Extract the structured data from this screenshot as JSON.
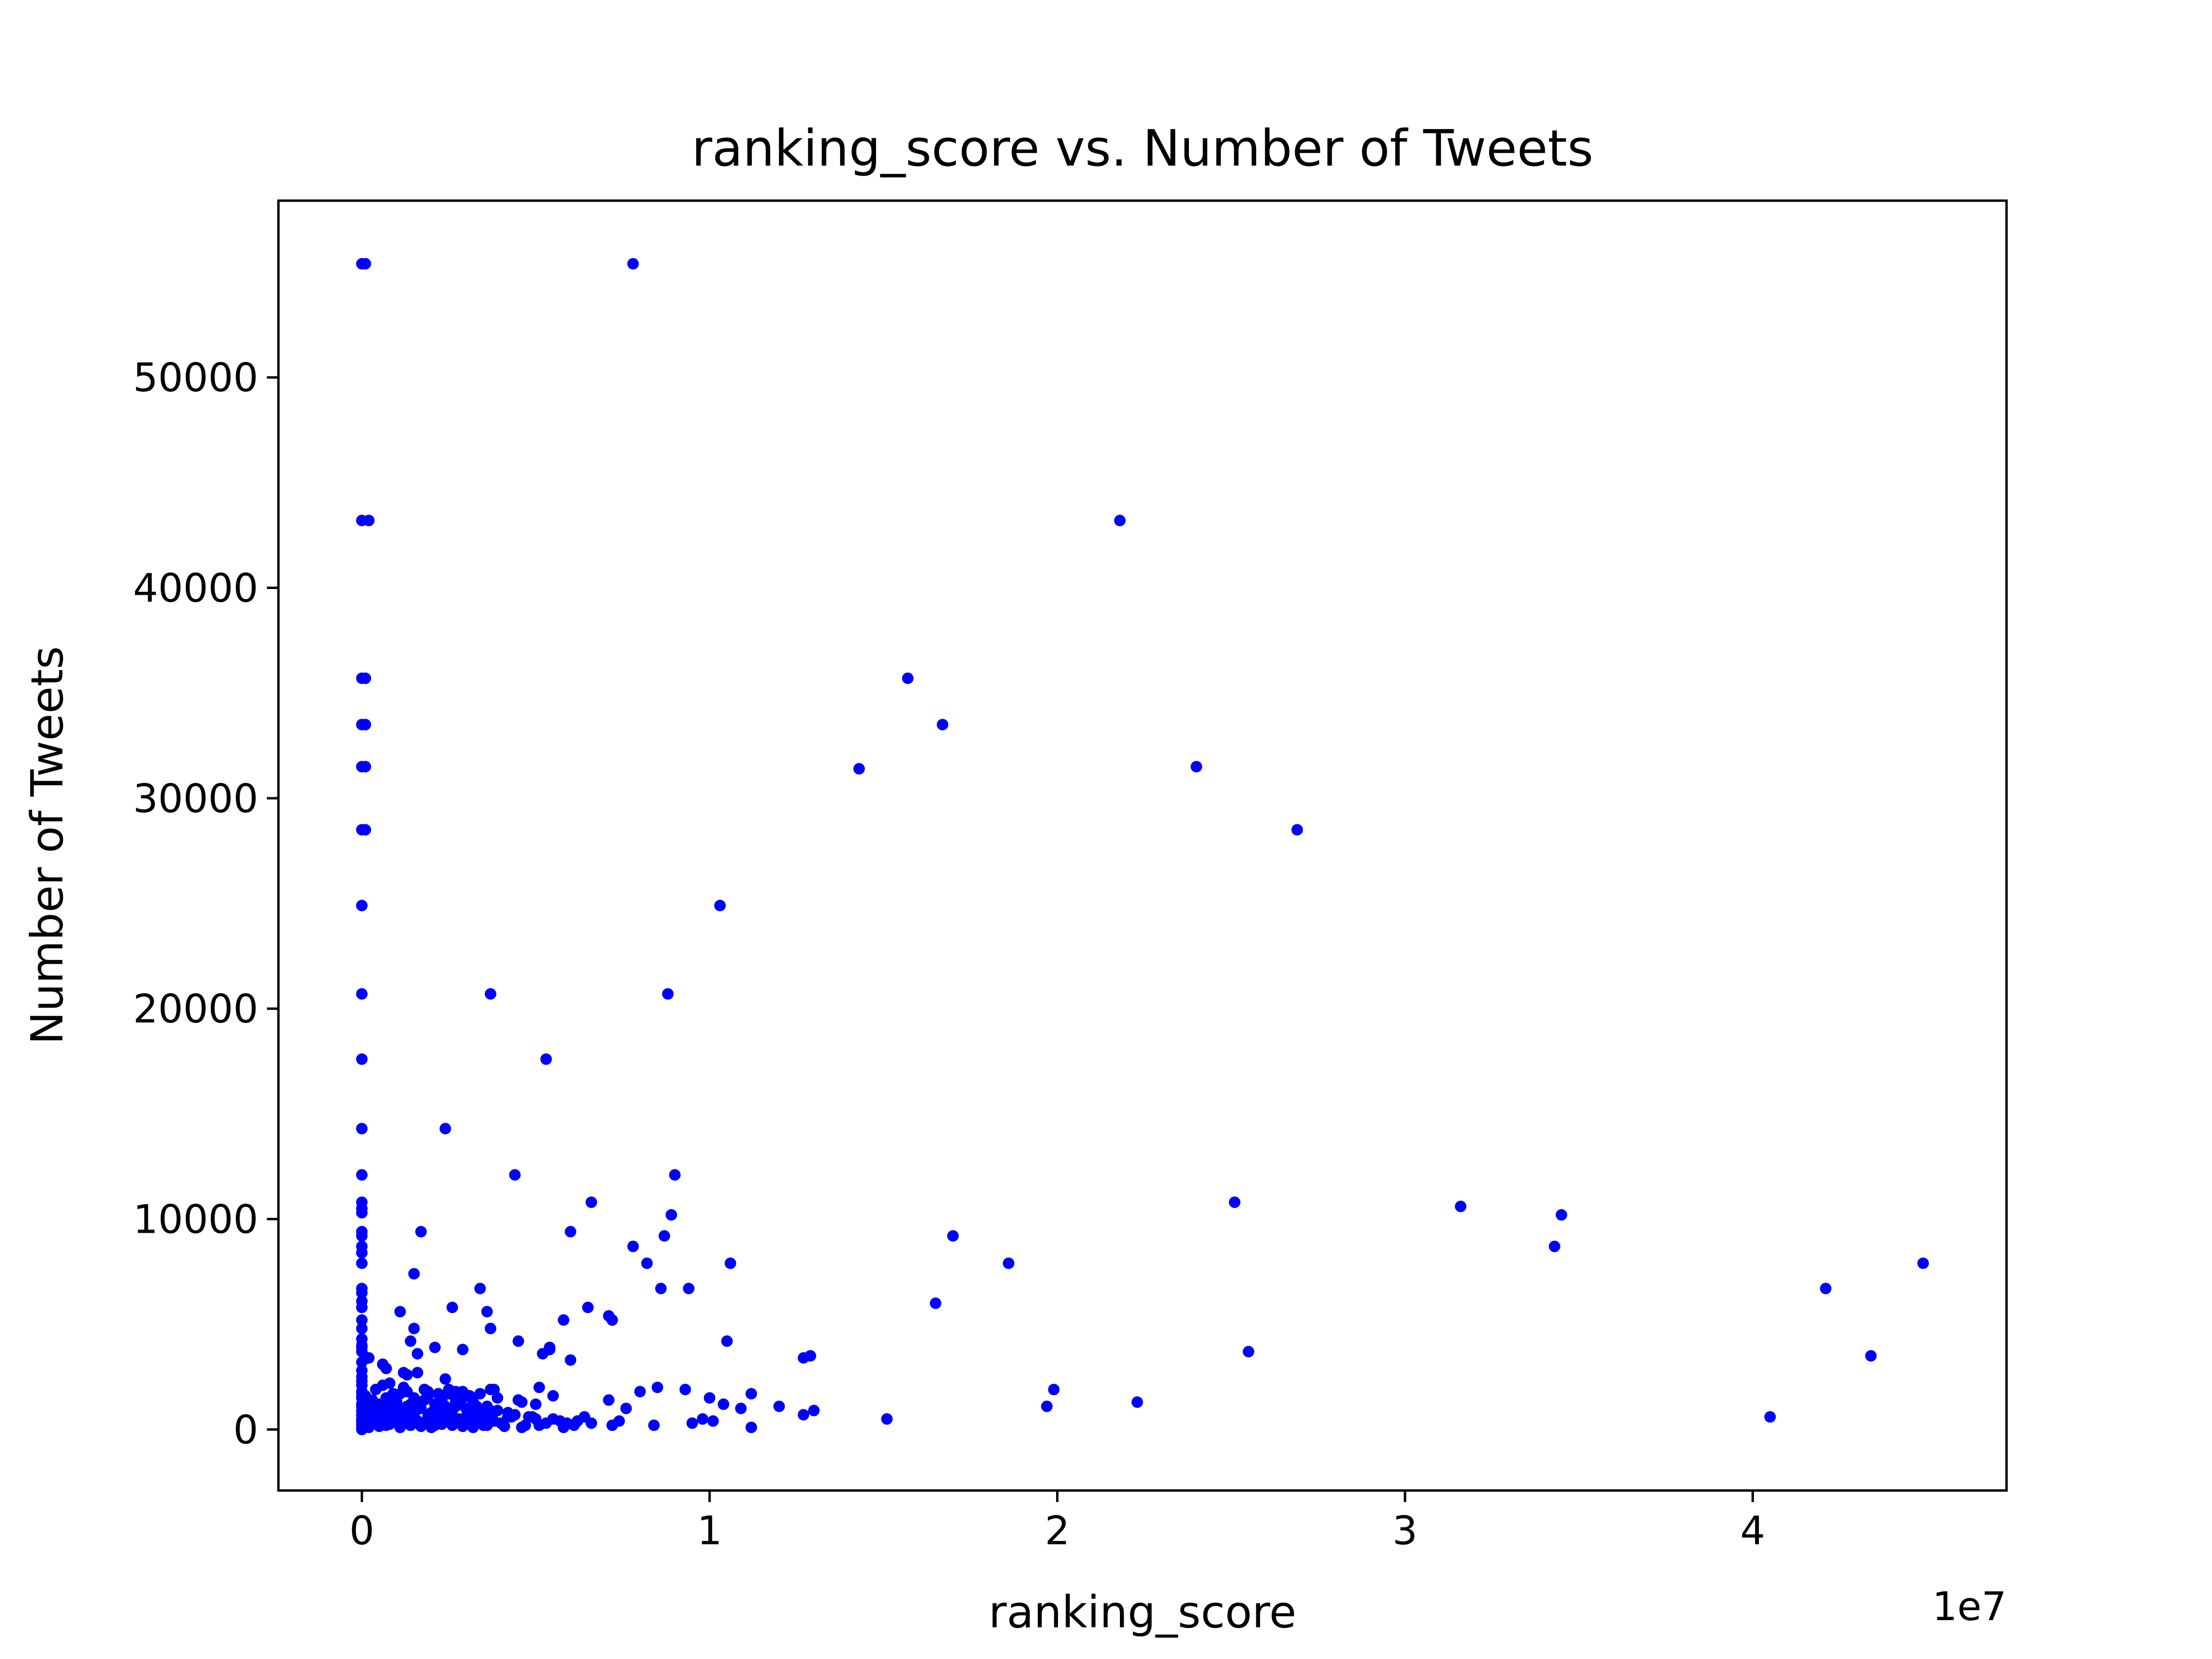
{
  "chart_data": {
    "type": "scatter",
    "title": "ranking_score vs. Number of Tweets",
    "xlabel": "ranking_score",
    "ylabel": "Number of Tweets",
    "x_offset_label": "1e7",
    "x_scale_note": "x values in units of 1e7",
    "xlim": [
      -0.24,
      4.73
    ],
    "ylim": [
      -2900,
      58400
    ],
    "x_ticks": [
      0,
      1,
      2,
      3,
      4
    ],
    "x_tick_labels": [
      "0",
      "1",
      "2",
      "3",
      "4"
    ],
    "y_ticks": [
      0,
      10000,
      20000,
      30000,
      40000,
      50000
    ],
    "y_tick_labels": [
      "0",
      "10000",
      "20000",
      "30000",
      "40000",
      "50000"
    ],
    "grid": false,
    "legend": "none",
    "marker_color": "#0000ff",
    "series": [
      {
        "x": [
          0.0,
          0.01,
          0.78,
          0.0,
          0.02,
          2.18,
          0.0,
          0.01,
          1.57,
          0.0,
          0.01,
          1.67,
          0.0,
          0.01,
          1.43,
          2.4,
          0.0,
          0.01,
          2.69,
          0.0,
          1.03,
          0.0,
          0.37,
          0.88,
          0.0,
          0.53,
          0.0,
          0.24,
          0.0,
          0.44,
          0.9,
          0.0,
          0.0,
          0.66,
          2.51,
          0.0,
          3.16,
          0.0,
          0.89,
          0.0,
          0.17,
          0.6,
          0.87,
          0.0,
          1.7,
          0.0,
          3.45,
          3.43,
          0.0,
          0.78,
          0.82,
          0.15,
          1.06,
          1.86,
          4.49,
          0.0,
          0.86,
          0.34,
          0.94,
          4.21,
          0.0,
          0.11,
          0.26,
          0.36,
          0.71,
          0.72,
          0.65,
          1.65,
          0.0,
          0.15,
          0.37,
          0.58,
          1.05,
          0.0,
          0.14,
          0.45,
          0.29,
          0.54,
          0.52,
          0.0,
          0.02,
          0.16,
          0.21,
          0.06,
          1.29,
          1.27,
          0.07,
          0.12,
          0.54,
          0.6,
          2.55,
          4.34,
          0.0,
          0.08,
          0.13,
          0.16,
          0.24,
          0.0,
          0.18,
          0.29,
          0.37,
          0.51,
          0.0,
          0.19,
          0.38,
          0.8,
          0.85,
          0.93,
          1.12,
          1.99,
          0.0,
          0.27,
          0.46,
          0.55,
          0.71,
          1.0,
          1.2,
          1.97,
          2.23,
          0.1,
          0.36,
          0.5,
          0.76,
          1.04,
          1.09,
          1.3,
          1.27,
          0.0,
          0.42,
          0.64,
          0.74,
          0.98,
          1.51,
          4.05,
          0.0,
          0.03,
          0.31,
          0.59,
          0.84,
          0.95,
          1.01,
          0.0,
          1.12,
          0.0,
          0.01,
          0.02,
          0.03,
          0.04,
          0.05,
          0.06,
          0.07,
          0.08,
          0.09,
          0.1,
          0.11,
          0.12,
          0.13,
          0.14,
          0.15,
          0.16,
          0.17,
          0.18,
          0.19,
          0.2,
          0.21,
          0.22,
          0.23,
          0.24,
          0.25,
          0.26,
          0.27,
          0.28,
          0.29,
          0.3,
          0.31,
          0.32,
          0.33,
          0.34,
          0.35,
          0.36,
          0.38,
          0.4,
          0.43,
          0.47,
          0.5,
          0.53,
          0.57,
          0.61,
          0.66,
          0.72,
          0.02,
          0.04,
          0.06,
          0.08,
          0.1,
          0.12,
          0.14,
          0.16,
          0.18,
          0.2,
          0.22,
          0.24,
          0.26,
          0.28,
          0.3,
          0.32,
          0.35,
          0.39,
          0.44,
          0.49,
          0.55,
          0.62,
          0.01,
          0.03,
          0.05,
          0.07,
          0.09,
          0.11,
          0.13,
          0.15,
          0.17,
          0.19,
          0.21,
          0.23,
          0.25,
          0.27,
          0.29,
          0.33,
          0.37,
          0.42,
          0.48,
          0.02,
          0.05,
          0.08,
          0.11,
          0.14,
          0.17,
          0.2,
          0.23,
          0.26,
          0.29,
          0.32,
          0.36,
          0.41,
          0.46,
          0.51,
          0.58,
          0.04,
          0.09,
          0.13,
          0.18,
          0.22,
          0.27,
          0.31,
          0.06,
          0.12,
          0.19,
          0.25,
          0.3,
          0.34,
          0.39,
          0.45,
          0.0,
          0.0,
          0.0,
          0.0,
          0.0,
          0.0,
          0.0,
          0.0,
          0.0,
          0.0,
          0.0,
          0.0,
          0.0,
          0.0,
          0.0,
          0.0,
          0.0,
          0.0
        ],
        "y": [
          55400,
          55400,
          55400,
          43200,
          43200,
          43200,
          35700,
          35700,
          35700,
          33500,
          33500,
          33500,
          31500,
          31500,
          31400,
          31500,
          28500,
          28500,
          28500,
          24900,
          24900,
          20700,
          20700,
          20700,
          17600,
          17600,
          14300,
          14300,
          12100,
          12100,
          12100,
          10800,
          10500,
          10800,
          10800,
          10300,
          10600,
          9400,
          10200,
          9200,
          9400,
          9400,
          9200,
          8700,
          9200,
          8400,
          10200,
          8700,
          7900,
          8700,
          7900,
          7400,
          7900,
          7900,
          7900,
          6700,
          6700,
          6700,
          6700,
          6700,
          6100,
          5600,
          5800,
          5600,
          5400,
          5200,
          5800,
          6000,
          5200,
          4800,
          4800,
          5200,
          4200,
          4300,
          4200,
          4200,
          3800,
          3800,
          3600,
          3900,
          3400,
          3600,
          3900,
          3100,
          3500,
          3400,
          2900,
          2700,
          3900,
          3300,
          3700,
          3500,
          2500,
          2200,
          2600,
          2700,
          2400,
          2100,
          1900,
          1800,
          1900,
          2000,
          1700,
          1600,
          1900,
          1800,
          2000,
          1900,
          1700,
          1900,
          1500,
          1400,
          1300,
          1600,
          1400,
          1500,
          1100,
          1100,
          1300,
          1000,
          1100,
          1200,
          1000,
          1200,
          1000,
          900,
          700,
          1100,
          600,
          600,
          400,
          500,
          500,
          600,
          700,
          800,
          500,
          300,
          200,
          300,
          400,
          400,
          100,
          900,
          200,
          400,
          600,
          300,
          700,
          500,
          200,
          800,
          400,
          600,
          300,
          900,
          500,
          200,
          700,
          400,
          1000,
          300,
          600,
          800,
          200,
          500,
          900,
          400,
          700,
          300,
          1100,
          500,
          200,
          600,
          400,
          800,
          300,
          500,
          200,
          700,
          400,
          300,
          600,
          200,
          500,
          300,
          400,
          200,
          300,
          200,
          1200,
          1000,
          800,
          1100,
          1300,
          900,
          1200,
          1000,
          1400,
          800,
          1300,
          1100,
          900,
          1200,
          1000,
          1300,
          800,
          900,
          700,
          600,
          500,
          400,
          1600,
          1400,
          1200,
          1500,
          1300,
          1700,
          1100,
          1500,
          1300,
          1600,
          1200,
          1400,
          1700,
          1300,
          1500,
          1100,
          900,
          800,
          600,
          100,
          150,
          250,
          100,
          200,
          150,
          100,
          250,
          200,
          150,
          100,
          200,
          150,
          100,
          200,
          100,
          1900,
          1700,
          1800,
          1900,
          1700,
          1800,
          1600,
          2100,
          2000,
          1800,
          1900,
          1600,
          1700,
          1500,
          1400,
          0,
          100,
          200,
          300,
          500,
          700,
          900,
          1200,
          1500,
          1800,
          2300,
          2800,
          3200,
          3700,
          4000,
          4800,
          5800,
          6500
        ]
      }
    ]
  }
}
